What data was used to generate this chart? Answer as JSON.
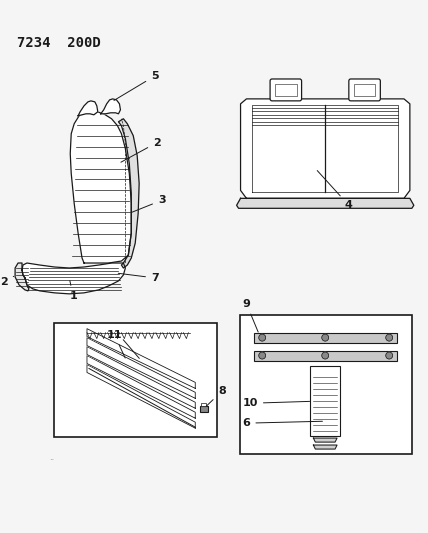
{
  "title": "7234  200D",
  "bg_color": "#f5f5f5",
  "line_color": "#1a1a1a",
  "title_fontsize": 10,
  "label_fontsize": 8,
  "figsize": [
    4.28,
    5.33
  ],
  "dpi": 100,
  "seat_back_ribs": 13,
  "seat_cushion_ribs": 8
}
